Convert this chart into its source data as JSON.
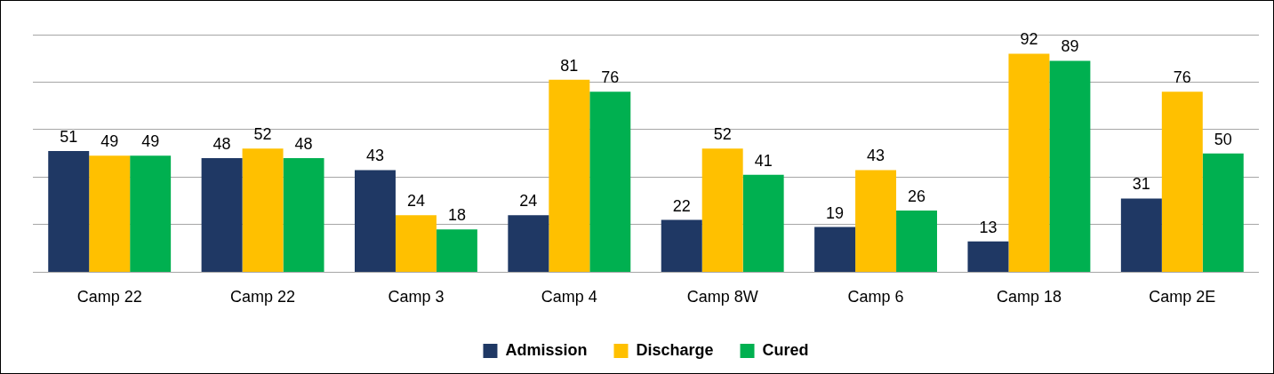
{
  "chart_data": {
    "type": "bar",
    "categories": [
      "Camp 22",
      "Camp 22",
      "Camp 3",
      "Camp 4",
      "Camp 8W",
      "Camp 6",
      "Camp 18",
      "Camp 2E"
    ],
    "series": [
      {
        "name": "Admission",
        "color": "#1f3864",
        "values": [
          51,
          48,
          43,
          24,
          22,
          19,
          13,
          31
        ]
      },
      {
        "name": "Discharge",
        "color": "#ffc000",
        "values": [
          49,
          52,
          24,
          81,
          52,
          43,
          92,
          76
        ]
      },
      {
        "name": "Cured",
        "color": "#00b050",
        "values": [
          49,
          48,
          18,
          76,
          41,
          26,
          89,
          50
        ]
      }
    ],
    "ylim": [
      0,
      100
    ],
    "yticks": [
      {
        "value": 0,
        "label": null
      },
      {
        "value": 20,
        "label": null
      },
      {
        "value": 40,
        "label": null
      },
      {
        "value": 60,
        "label": null
      },
      {
        "value": 80,
        "label": null
      },
      {
        "value": 100,
        "label": null
      }
    ],
    "tick_labels": "x",
    "grid": "y",
    "legend": "bottom",
    "data_labels": true
  }
}
